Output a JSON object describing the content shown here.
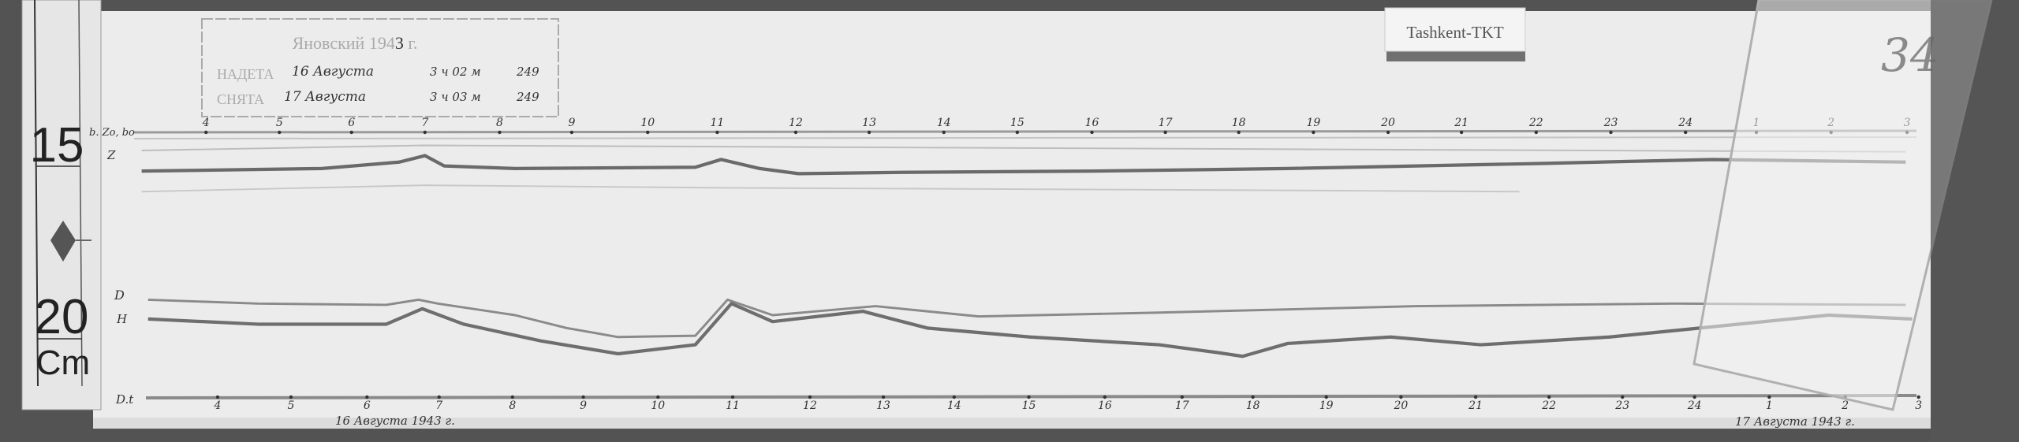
{
  "ruler": {
    "mark_15": "15",
    "mark_20": "20",
    "unit": "Cm"
  },
  "stamp": {
    "header": "Яновский 194",
    "year_digit": "3",
    "header_suffix": "г.",
    "put_on_label": "НАДЕТА",
    "put_on_date": "16 Августа",
    "put_on_time": "3 ч 02 м",
    "put_on_extra": "249",
    "taken_off_label": "СНЯТА",
    "taken_off_date": "17 Августа",
    "taken_off_time": "3 ч 03 м",
    "taken_off_extra": "249"
  },
  "station_label": "Tashkent-TKT",
  "sheet_number": "34",
  "trace_labels": {
    "top_baseline": "b. Zo, bo",
    "z": "Z",
    "d": "D",
    "h": "H",
    "bottom_baseline": "D.t"
  },
  "top_hours": [
    "4",
    "5",
    "6",
    "7",
    "8",
    "9",
    "10",
    "11",
    "12",
    "13",
    "14",
    "15",
    "16",
    "17",
    "18",
    "19",
    "20",
    "21",
    "22",
    "23",
    "24",
    "1",
    "2",
    "3"
  ],
  "bottom_hours": [
    "4",
    "5",
    "6",
    "7",
    "8",
    "9",
    "10",
    "11",
    "12",
    "13",
    "14",
    "15",
    "16",
    "17",
    "18",
    "19",
    "20",
    "21",
    "22",
    "23",
    "24",
    "1",
    "2",
    "3"
  ],
  "start_date": "16 Августа 1943 г.",
  "end_date": "17 Августа 1943 г.",
  "colors": {
    "paper": "#ebebeb",
    "trace": "#6a6a6a",
    "background": "#4e4e4e"
  }
}
